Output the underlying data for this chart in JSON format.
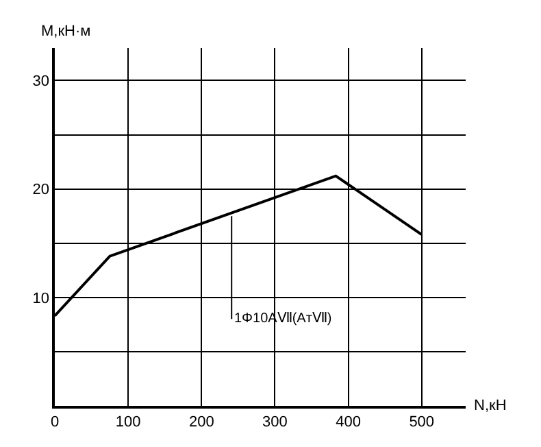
{
  "chart_data": {
    "type": "line",
    "xlabel": "N,кН",
    "ylabel": "M,кН·м",
    "x": [
      0,
      75,
      383,
      500
    ],
    "series": [
      {
        "color": "#000000",
        "values": [
          8.3,
          13.8,
          21.2,
          15.8
        ]
      }
    ],
    "xlim": [
      0,
      560
    ],
    "ylim": [
      0,
      33
    ],
    "xticks": [
      0,
      100,
      200,
      300,
      400,
      500
    ],
    "yticks": [
      {
        "value": 5,
        "label": null
      },
      10,
      {
        "value": 15,
        "label": null
      },
      20,
      {
        "value": 25,
        "label": null
      },
      30
    ],
    "grid": true,
    "marker": "none",
    "line_style": "solid",
    "legend": false,
    "annotations": [
      {
        "text": "1Φ10AⅦ(AтⅦ)",
        "x": 241,
        "y": 17.5
      }
    ]
  }
}
